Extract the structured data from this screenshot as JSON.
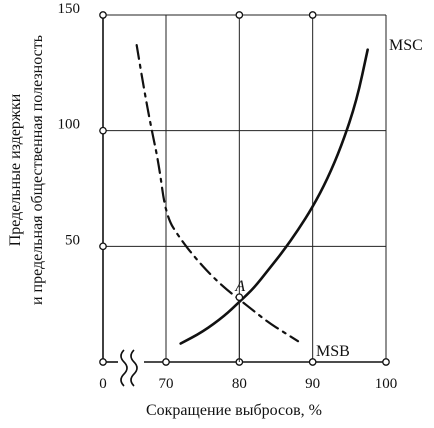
{
  "chart_data": {
    "type": "line",
    "title": "",
    "xlabel": "Сокращение выбросов, %",
    "ylabel_lines": [
      "Предельные издержки",
      "и предельная общественная полезность"
    ],
    "x_ticks": [
      "0",
      "70",
      "80",
      "90",
      "100"
    ],
    "y_ticks": [
      "0",
      "50",
      "100",
      "150"
    ],
    "xlim": [
      70,
      100
    ],
    "ylim": [
      0,
      150
    ],
    "axis_break": "between 0 and 70 on the x-axis",
    "grid": true,
    "series": [
      {
        "name": "MSC",
        "style": "solid",
        "x": [
          72,
          75,
          78,
          80,
          82,
          84,
          86,
          88,
          90,
          92,
          94,
          96,
          97.5
        ],
        "y": [
          8,
          13,
          20,
          26,
          32,
          40,
          48,
          57,
          67,
          79,
          94,
          113,
          135
        ]
      },
      {
        "name": "MSB",
        "style": "dash-dot",
        "x": [
          66,
          67,
          68,
          69,
          70,
          72,
          74,
          76,
          78,
          80,
          82,
          84,
          86,
          88
        ],
        "y": [
          137,
          118,
          101,
          86,
          63,
          53,
          45,
          38,
          32,
          27,
          22,
          17,
          13,
          9
        ]
      }
    ],
    "annotations": [
      {
        "text": "A",
        "x": 80,
        "y": 28
      }
    ]
  }
}
